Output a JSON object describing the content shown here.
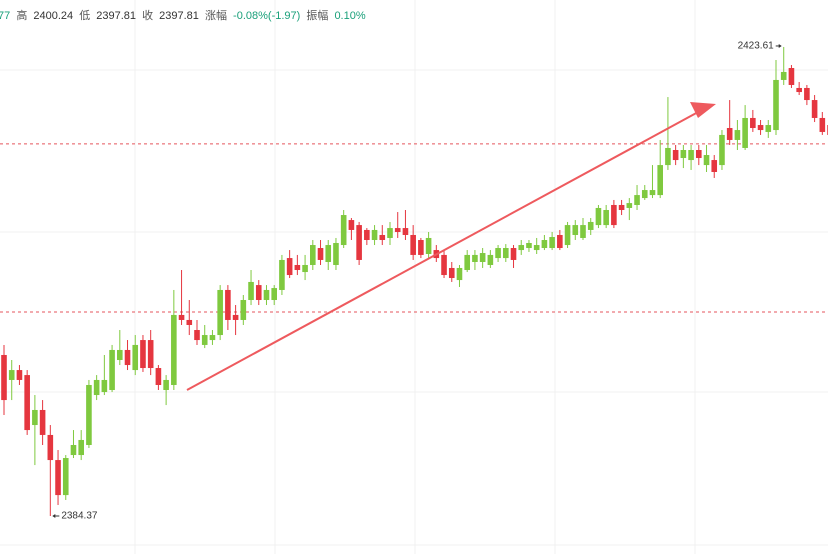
{
  "header": [
    "77",
    "高",
    "2400.24",
    "低",
    "2397.81",
    "收",
    "2397.81",
    "涨幅",
    "-0.08%(-1.97)",
    "振幅",
    "0.10%"
  ],
  "chart_data": {
    "type": "candlestick",
    "up_color": "#7fc93f",
    "down_color": "#e5363f",
    "hline_color": "#e5565c",
    "ylim": [
      2381.19,
      2427.54
    ],
    "hlines": [
      2415.5,
      2401.44
    ],
    "open": [
      2397.84,
      2395.75,
      2396.58,
      2396.16,
      2391.98,
      2393.24,
      2391.15,
      2389.05,
      2386.12,
      2389.47,
      2389.47,
      2390.31,
      2394.49,
      2394.74,
      2394.91,
      2397.42,
      2398.26,
      2396.58,
      2399.09,
      2399.09,
      2396.75,
      2394.91,
      2395.33,
      2401.19,
      2400.77,
      2399.93,
      2398.68,
      2399.09,
      2399.51,
      2403.28,
      2401.19,
      2400.77,
      2402.44,
      2403.69,
      2402.44,
      2402.44,
      2403.28,
      2405.95,
      2405.37,
      2404.78,
      2405.37,
      2406.79,
      2405.62,
      2405.37,
      2407.04,
      2409.13,
      2408.71,
      2408.3,
      2407.46,
      2407.88,
      2407.63,
      2408.46,
      2408.46,
      2407.88,
      2407.46,
      2406.29,
      2406.62,
      2406.21,
      2405.12,
      2404.11,
      2404.95,
      2405.62,
      2405.62,
      2405.37,
      2405.95,
      2405.95,
      2406.79,
      2406.62,
      2406.79,
      2406.62,
      2406.79,
      2406.79,
      2407.88,
      2407.04,
      2407.88,
      2407.63,
      2408.3,
      2408.71,
      2408.71,
      2410.39,
      2410.39,
      2410.14,
      2410.39,
      2410.97,
      2411.22,
      2411.22,
      2413.73,
      2414.99,
      2414.32,
      2414.15,
      2414.99,
      2413.73,
      2414.15,
      2413.73,
      2416.83,
      2415.83,
      2415.16,
      2417.67,
      2417.08,
      2416.5,
      2416.66,
      2420.85,
      2421.85,
      2420.18,
      2420.18,
      2419.17,
      2417.67,
      2417.08
    ],
    "high": [
      2398.68,
      2397.42,
      2397.0,
      2396.58,
      2394.49,
      2394.07,
      2391.98,
      2389.89,
      2389.47,
      2391.56,
      2391.56,
      2395.75,
      2396.16,
      2397.84,
      2398.68,
      2399.93,
      2399.09,
      2399.51,
      2399.51,
      2399.93,
      2397.0,
      2396.16,
      2403.28,
      2404.95,
      2402.44,
      2400.77,
      2400.35,
      2399.93,
      2403.69,
      2403.69,
      2402.02,
      2402.86,
      2404.95,
      2404.11,
      2403.69,
      2403.69,
      2406.21,
      2406.62,
      2406.21,
      2406.21,
      2407.46,
      2407.46,
      2407.46,
      2407.63,
      2409.97,
      2409.3,
      2408.97,
      2408.46,
      2408.71,
      2408.71,
      2408.97,
      2409.8,
      2409.97,
      2408.71,
      2407.63,
      2408.13,
      2407.04,
      2406.62,
      2405.62,
      2405.37,
      2406.62,
      2406.62,
      2406.79,
      2406.62,
      2407.04,
      2407.12,
      2407.04,
      2407.46,
      2407.46,
      2407.63,
      2407.88,
      2408.13,
      2408.3,
      2408.97,
      2409.13,
      2409.3,
      2409.3,
      2410.39,
      2410.39,
      2410.81,
      2410.81,
      2410.97,
      2412.06,
      2412.06,
      2413.73,
      2415.83,
      2419.42,
      2415.41,
      2415.41,
      2415.41,
      2415.41,
      2415.41,
      2414.57,
      2416.66,
      2419.17,
      2417.5,
      2418.75,
      2418.34,
      2417.5,
      2417.5,
      2422.52,
      2423.61,
      2422.1,
      2420.68,
      2420.43,
      2419.59,
      2418.17,
      2417.5
    ],
    "low": [
      2392.82,
      2394.07,
      2395.33,
      2391.15,
      2388.63,
      2390.31,
      2384.37,
      2385.29,
      2385.71,
      2389.22,
      2389.05,
      2390.06,
      2394.07,
      2394.49,
      2394.74,
      2397.0,
      2396.58,
      2396.16,
      2396.42,
      2396.16,
      2394.91,
      2393.65,
      2394.91,
      2400.35,
      2399.51,
      2398.68,
      2398.42,
      2398.68,
      2399.09,
      2399.93,
      2399.51,
      2400.35,
      2402.02,
      2402.02,
      2402.02,
      2402.02,
      2402.86,
      2404.28,
      2404.53,
      2404.11,
      2404.95,
      2405.37,
      2404.95,
      2404.95,
      2406.79,
      2407.46,
      2405.37,
      2407.04,
      2407.04,
      2407.04,
      2407.04,
      2407.63,
      2407.46,
      2405.79,
      2405.95,
      2405.95,
      2405.62,
      2404.28,
      2403.95,
      2403.53,
      2404.78,
      2404.95,
      2405.12,
      2405.12,
      2405.62,
      2405.62,
      2405.12,
      2406.21,
      2406.46,
      2406.29,
      2406.62,
      2406.62,
      2406.62,
      2406.79,
      2407.46,
      2407.46,
      2407.88,
      2408.46,
      2408.46,
      2408.46,
      2409.55,
      2409.13,
      2409.97,
      2410.81,
      2410.97,
      2410.97,
      2413.32,
      2413.73,
      2413.48,
      2413.32,
      2413.73,
      2413.15,
      2412.65,
      2413.32,
      2415.41,
      2414.99,
      2414.99,
      2416.5,
      2416.25,
      2416.0,
      2416.25,
      2420.43,
      2420.18,
      2419.59,
      2418.75,
      2417.33,
      2416.25,
      2416.0
    ],
    "close": [
      2394.07,
      2396.58,
      2395.75,
      2391.56,
      2393.24,
      2391.15,
      2389.05,
      2386.12,
      2389.22,
      2390.31,
      2390.73,
      2395.33,
      2395.75,
      2395.75,
      2398.26,
      2398.26,
      2397.0,
      2398.68,
      2396.75,
      2396.75,
      2395.33,
      2395.75,
      2401.19,
      2400.77,
      2400.35,
      2399.09,
      2399.51,
      2399.51,
      2403.28,
      2400.77,
      2400.77,
      2402.44,
      2403.95,
      2402.44,
      2403.28,
      2403.44,
      2405.79,
      2404.53,
      2404.95,
      2405.37,
      2407.04,
      2405.79,
      2407.04,
      2407.21,
      2409.55,
      2408.3,
      2405.79,
      2407.46,
      2408.3,
      2407.46,
      2408.46,
      2408.13,
      2407.88,
      2406.21,
      2406.21,
      2407.63,
      2405.95,
      2404.53,
      2404.28,
      2405.12,
      2406.21,
      2406.21,
      2406.37,
      2406.21,
      2406.79,
      2406.79,
      2405.79,
      2407.04,
      2407.21,
      2407.04,
      2407.46,
      2407.71,
      2406.79,
      2408.71,
      2408.71,
      2408.71,
      2408.97,
      2410.14,
      2409.97,
      2408.71,
      2409.97,
      2410.55,
      2411.22,
      2411.64,
      2411.64,
      2413.73,
      2415.16,
      2414.15,
      2414.99,
      2414.99,
      2414.32,
      2414.57,
      2413.15,
      2416.25,
      2415.83,
      2416.66,
      2417.67,
      2416.83,
      2416.66,
      2417.08,
      2420.85,
      2421.52,
      2420.43,
      2419.84,
      2419.17,
      2417.67,
      2416.5,
      2416.25
    ]
  }
}
